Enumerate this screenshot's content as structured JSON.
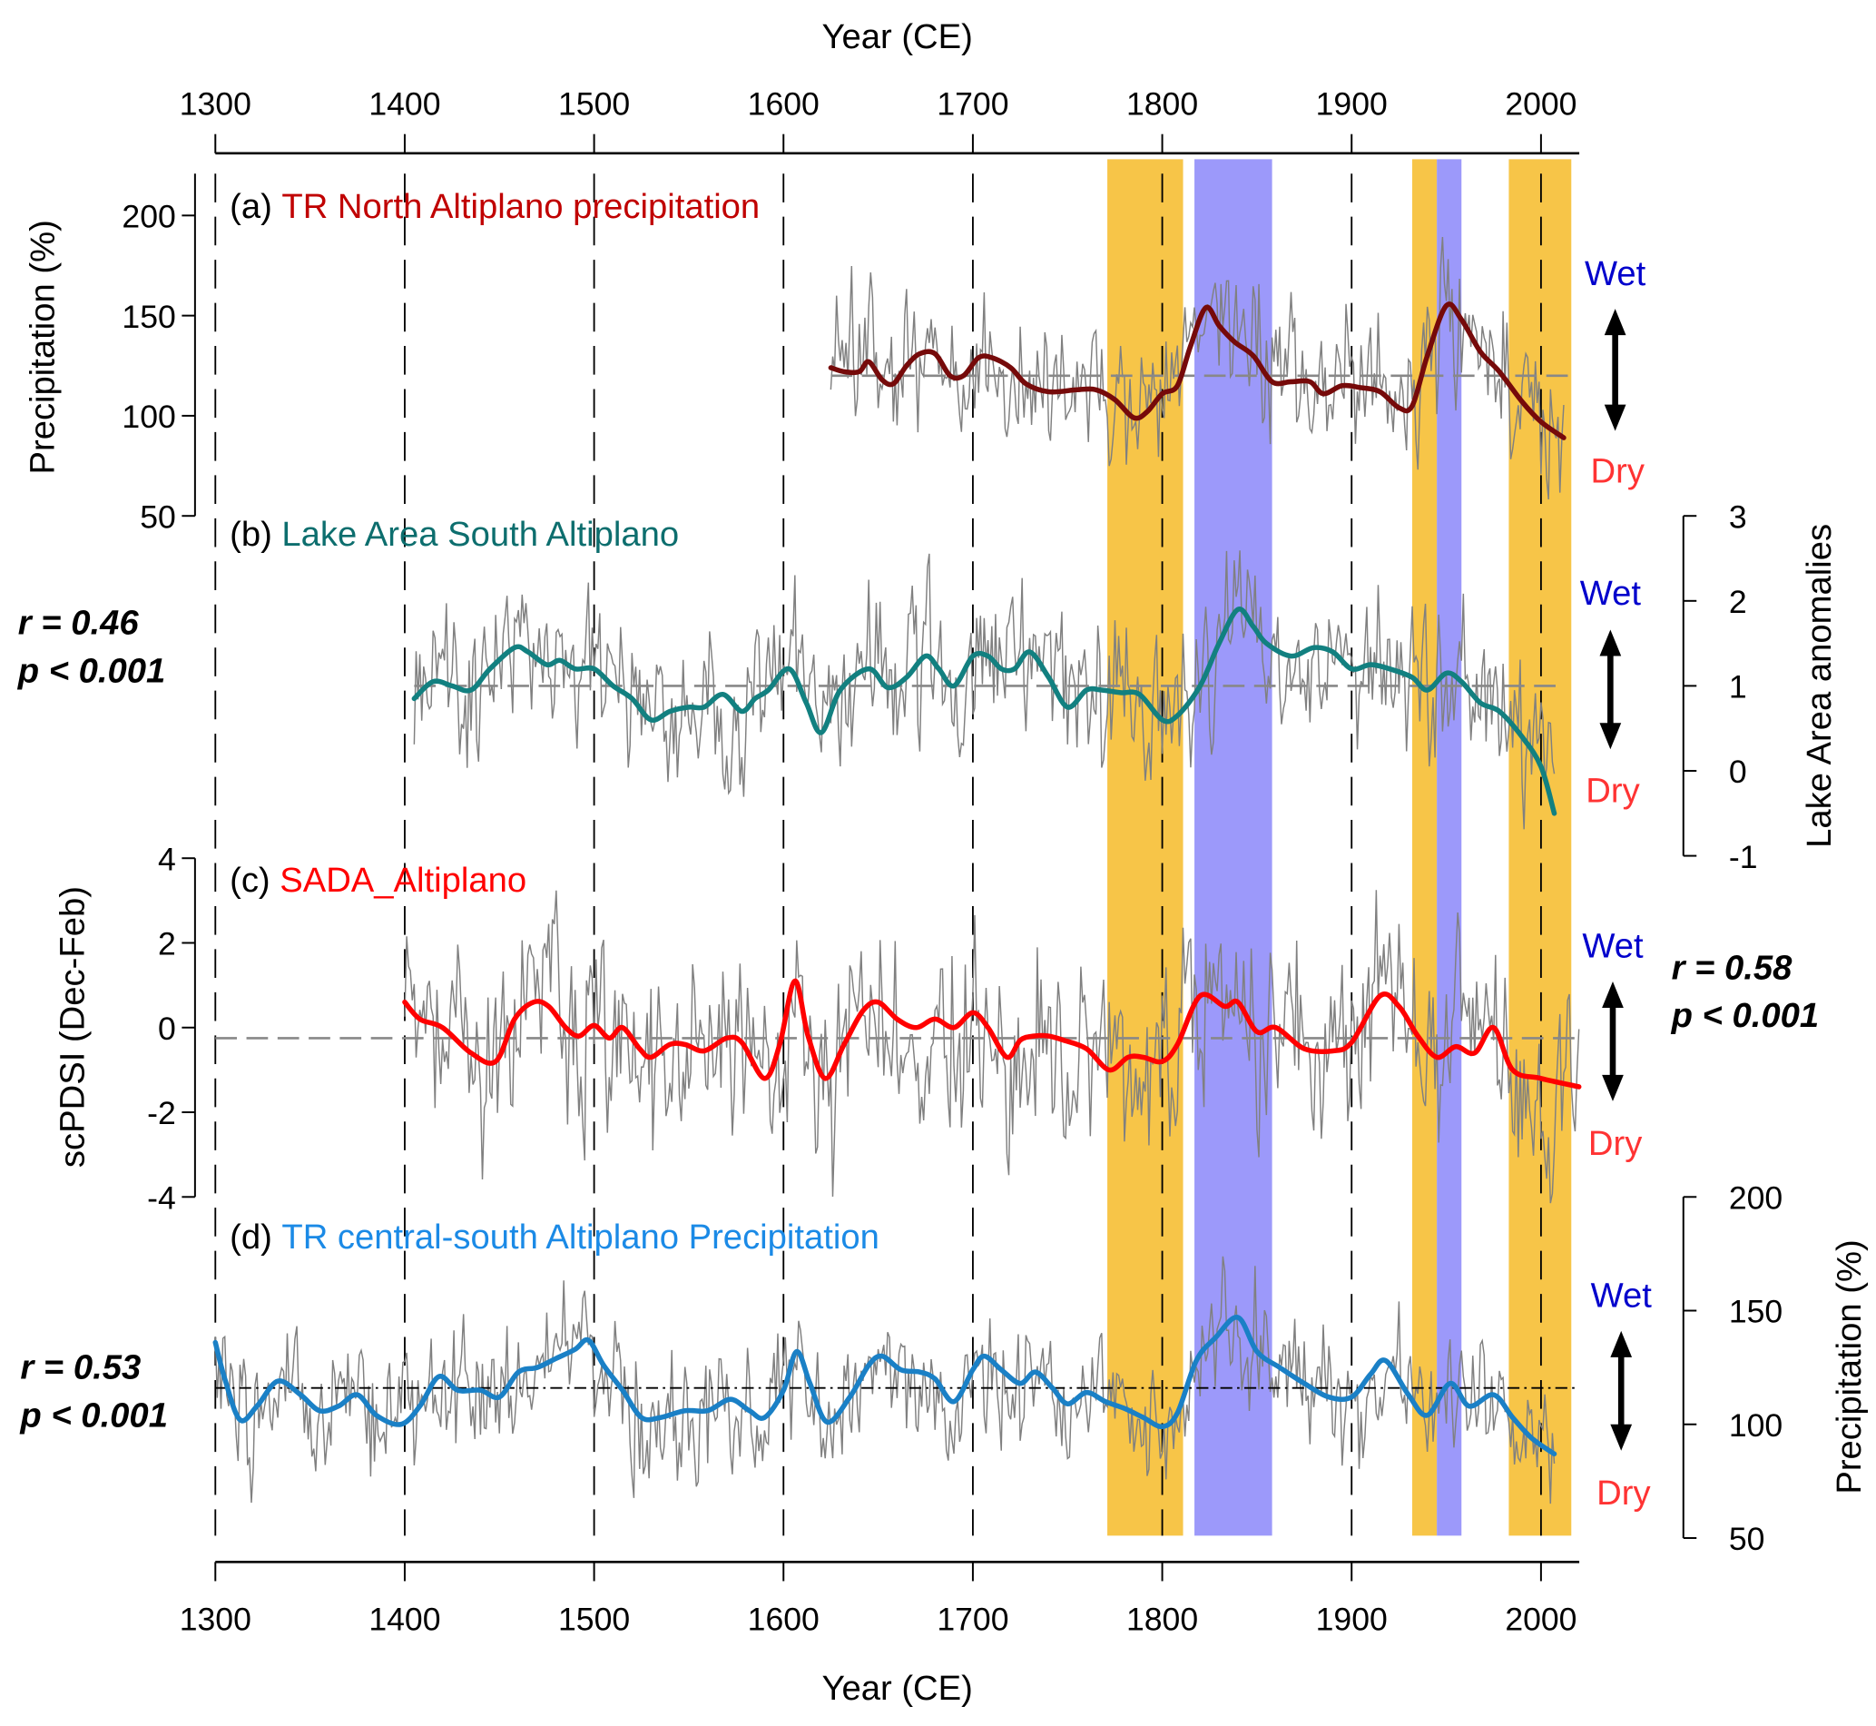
{
  "chart_data": {
    "type": "line",
    "x_axis": {
      "label": "Year (CE)",
      "range": [
        1300,
        2020
      ],
      "ticks": [
        1300,
        1400,
        1500,
        1600,
        1700,
        1800,
        1900,
        2000
      ]
    },
    "shaded_periods": [
      {
        "type": "dry",
        "color": "#f7c548",
        "range": [
          1771,
          1811
        ]
      },
      {
        "type": "wet",
        "color": "#9c99fa",
        "range": [
          1817,
          1858
        ]
      },
      {
        "type": "dry",
        "color": "#f7c548",
        "range": [
          1932,
          1945
        ]
      },
      {
        "type": "wet",
        "color": "#9c99fa",
        "range": [
          1945,
          1958
        ]
      },
      {
        "type": "dry",
        "color": "#f7c548",
        "range": [
          1983,
          2016
        ]
      }
    ],
    "panels": [
      {
        "id": "a",
        "tag": "(a)",
        "title": "TR North Altiplano precipitation",
        "title_color": "#c00000",
        "line_color": "#760a0a",
        "axis_side": "left",
        "ylabel": "Precipitation (%)",
        "ylim": [
          50,
          220
        ],
        "yticks": [
          50,
          100,
          150,
          200
        ],
        "reference": 120,
        "ref_range": [
          1625,
          2015
        ],
        "ref_color": "#888888",
        "noise_amp": 38,
        "noise_seed": 11,
        "smooth": [
          [
            1625,
            124
          ],
          [
            1632,
            122
          ],
          [
            1640,
            122
          ],
          [
            1645,
            127
          ],
          [
            1652,
            118
          ],
          [
            1658,
            116
          ],
          [
            1665,
            125
          ],
          [
            1672,
            131
          ],
          [
            1680,
            131
          ],
          [
            1688,
            120
          ],
          [
            1695,
            120
          ],
          [
            1703,
            129
          ],
          [
            1710,
            129
          ],
          [
            1720,
            124
          ],
          [
            1728,
            116
          ],
          [
            1740,
            112
          ],
          [
            1755,
            113
          ],
          [
            1765,
            113
          ],
          [
            1775,
            108
          ],
          [
            1785,
            99
          ],
          [
            1792,
            102
          ],
          [
            1800,
            111
          ],
          [
            1808,
            115
          ],
          [
            1815,
            135
          ],
          [
            1823,
            154
          ],
          [
            1830,
            145
          ],
          [
            1838,
            137
          ],
          [
            1848,
            130
          ],
          [
            1858,
            117
          ],
          [
            1868,
            117
          ],
          [
            1878,
            117
          ],
          [
            1885,
            111
          ],
          [
            1895,
            115
          ],
          [
            1905,
            114
          ],
          [
            1915,
            112
          ],
          [
            1925,
            104
          ],
          [
            1932,
            105
          ],
          [
            1940,
            130
          ],
          [
            1950,
            155
          ],
          [
            1958,
            148
          ],
          [
            1968,
            132
          ],
          [
            1978,
            122
          ],
          [
            1990,
            107
          ],
          [
            2000,
            97
          ],
          [
            2012,
            89
          ]
        ],
        "wet": "Wet",
        "dry": "Dry",
        "r": null,
        "p": null
      },
      {
        "id": "b",
        "tag": "(b)",
        "title": "Lake Area South Altiplano",
        "title_color": "#0d6e6e",
        "line_color": "#128080",
        "axis_side": "right",
        "ylabel": "Lake Area anomalies",
        "ylim": [
          -1,
          3
        ],
        "yticks": [
          -1,
          0,
          1,
          2,
          3
        ],
        "reference": 1.0,
        "ref_range": [
          1405,
          2008
        ],
        "ref_color": "#888888",
        "noise_amp": 0.95,
        "noise_seed": 23,
        "smooth": [
          [
            1405,
            0.85
          ],
          [
            1415,
            1.05
          ],
          [
            1425,
            1.0
          ],
          [
            1435,
            0.95
          ],
          [
            1445,
            1.2
          ],
          [
            1458,
            1.45
          ],
          [
            1465,
            1.4
          ],
          [
            1475,
            1.25
          ],
          [
            1482,
            1.3
          ],
          [
            1490,
            1.2
          ],
          [
            1500,
            1.2
          ],
          [
            1510,
            1.0
          ],
          [
            1520,
            0.85
          ],
          [
            1530,
            0.6
          ],
          [
            1540,
            0.7
          ],
          [
            1550,
            0.75
          ],
          [
            1558,
            0.75
          ],
          [
            1568,
            0.9
          ],
          [
            1578,
            0.7
          ],
          [
            1585,
            0.85
          ],
          [
            1592,
            0.95
          ],
          [
            1603,
            1.2
          ],
          [
            1612,
            0.8
          ],
          [
            1620,
            0.45
          ],
          [
            1630,
            0.95
          ],
          [
            1645,
            1.2
          ],
          [
            1655,
            0.98
          ],
          [
            1665,
            1.1
          ],
          [
            1675,
            1.35
          ],
          [
            1682,
            1.2
          ],
          [
            1690,
            1.0
          ],
          [
            1700,
            1.35
          ],
          [
            1708,
            1.35
          ],
          [
            1715,
            1.2
          ],
          [
            1722,
            1.2
          ],
          [
            1730,
            1.4
          ],
          [
            1740,
            1.1
          ],
          [
            1750,
            0.75
          ],
          [
            1760,
            0.95
          ],
          [
            1768,
            0.95
          ],
          [
            1778,
            0.92
          ],
          [
            1788,
            0.9
          ],
          [
            1800,
            0.6
          ],
          [
            1808,
            0.65
          ],
          [
            1820,
            1.0
          ],
          [
            1830,
            1.5
          ],
          [
            1840,
            1.9
          ],
          [
            1848,
            1.7
          ],
          [
            1855,
            1.5
          ],
          [
            1868,
            1.35
          ],
          [
            1880,
            1.45
          ],
          [
            1890,
            1.4
          ],
          [
            1900,
            1.2
          ],
          [
            1910,
            1.25
          ],
          [
            1920,
            1.2
          ],
          [
            1932,
            1.1
          ],
          [
            1940,
            0.95
          ],
          [
            1950,
            1.15
          ],
          [
            1958,
            1.05
          ],
          [
            1968,
            0.8
          ],
          [
            1978,
            0.7
          ],
          [
            1990,
            0.4
          ],
          [
            2000,
            0.05
          ],
          [
            2007,
            -0.5
          ]
        ],
        "wet": "Wet",
        "dry": "Dry",
        "r": "r = 0.46",
        "p": "p < 0.001"
      },
      {
        "id": "c",
        "tag": "(c)",
        "title": "SADA_Altiplano",
        "title_color": "#ff0000",
        "line_color": "#ff0000",
        "axis_side": "left",
        "ylabel": "scPDSI (Dec-Feb)",
        "ylim": [
          -4,
          4
        ],
        "yticks": [
          -4,
          -2,
          0,
          2,
          4
        ],
        "reference": -0.25,
        "ref_range": [
          1300,
          2020
        ],
        "ref_color": "#888888",
        "noise_amp": 2.4,
        "noise_seed": 37,
        "smooth": [
          [
            1400,
            0.6
          ],
          [
            1408,
            0.2
          ],
          [
            1420,
            0.0
          ],
          [
            1435,
            -0.6
          ],
          [
            1448,
            -0.8
          ],
          [
            1458,
            0.2
          ],
          [
            1468,
            0.6
          ],
          [
            1476,
            0.5
          ],
          [
            1485,
            0.0
          ],
          [
            1492,
            -0.2
          ],
          [
            1500,
            0.05
          ],
          [
            1508,
            -0.25
          ],
          [
            1515,
            0.0
          ],
          [
            1524,
            -0.5
          ],
          [
            1530,
            -0.7
          ],
          [
            1540,
            -0.4
          ],
          [
            1548,
            -0.4
          ],
          [
            1558,
            -0.55
          ],
          [
            1570,
            -0.25
          ],
          [
            1578,
            -0.35
          ],
          [
            1590,
            -1.2
          ],
          [
            1598,
            -0.4
          ],
          [
            1606,
            1.1
          ],
          [
            1613,
            -0.2
          ],
          [
            1622,
            -1.2
          ],
          [
            1632,
            -0.4
          ],
          [
            1642,
            0.4
          ],
          [
            1650,
            0.6
          ],
          [
            1660,
            0.2
          ],
          [
            1670,
            0.0
          ],
          [
            1680,
            0.2
          ],
          [
            1690,
            0.0
          ],
          [
            1700,
            0.35
          ],
          [
            1708,
            0.0
          ],
          [
            1718,
            -0.7
          ],
          [
            1725,
            -0.3
          ],
          [
            1732,
            -0.2
          ],
          [
            1740,
            -0.2
          ],
          [
            1748,
            -0.3
          ],
          [
            1760,
            -0.5
          ],
          [
            1772,
            -1.0
          ],
          [
            1782,
            -0.7
          ],
          [
            1790,
            -0.7
          ],
          [
            1800,
            -0.8
          ],
          [
            1808,
            -0.4
          ],
          [
            1820,
            0.75
          ],
          [
            1833,
            0.5
          ],
          [
            1840,
            0.6
          ],
          [
            1850,
            -0.1
          ],
          [
            1860,
            0.0
          ],
          [
            1875,
            -0.5
          ],
          [
            1890,
            -0.55
          ],
          [
            1900,
            -0.35
          ],
          [
            1915,
            0.75
          ],
          [
            1925,
            0.5
          ],
          [
            1935,
            -0.2
          ],
          [
            1945,
            -0.7
          ],
          [
            1955,
            -0.45
          ],
          [
            1965,
            -0.6
          ],
          [
            1975,
            0.0
          ],
          [
            1985,
            -1.0
          ],
          [
            2000,
            -1.2
          ],
          [
            2020,
            -1.4
          ]
        ],
        "wet": "Wet",
        "dry": "Dry",
        "r": "r = 0.58",
        "p": "p < 0.001"
      },
      {
        "id": "d",
        "tag": "(d)",
        "title": "TR central-south Altiplano Precipitation",
        "title_color": "#1b8ae6",
        "line_color": "#1a80c6",
        "axis_side": "right",
        "ylabel": "Precipitation (%)",
        "ylim": [
          50,
          200
        ],
        "yticks": [
          50,
          100,
          150,
          200
        ],
        "reference": 116,
        "ref_range": [
          1300,
          2020
        ],
        "ref_color": "#000000",
        "noise_amp": 30,
        "noise_seed": 53,
        "smooth": [
          [
            1300,
            136
          ],
          [
            1305,
            120
          ],
          [
            1313,
            102
          ],
          [
            1322,
            108
          ],
          [
            1333,
            119
          ],
          [
            1345,
            113
          ],
          [
            1355,
            106
          ],
          [
            1365,
            108
          ],
          [
            1375,
            113
          ],
          [
            1385,
            104
          ],
          [
            1398,
            100
          ],
          [
            1408,
            108
          ],
          [
            1418,
            121
          ],
          [
            1428,
            115
          ],
          [
            1440,
            115
          ],
          [
            1450,
            112
          ],
          [
            1460,
            123
          ],
          [
            1470,
            125
          ],
          [
            1480,
            129
          ],
          [
            1490,
            133
          ],
          [
            1497,
            137
          ],
          [
            1505,
            126
          ],
          [
            1515,
            115
          ],
          [
            1525,
            103
          ],
          [
            1535,
            103
          ],
          [
            1548,
            106
          ],
          [
            1560,
            106
          ],
          [
            1572,
            111
          ],
          [
            1582,
            106
          ],
          [
            1590,
            103
          ],
          [
            1600,
            115
          ],
          [
            1607,
            132
          ],
          [
            1614,
            118
          ],
          [
            1623,
            101
          ],
          [
            1635,
            112
          ],
          [
            1645,
            126
          ],
          [
            1652,
            130
          ],
          [
            1662,
            124
          ],
          [
            1672,
            123
          ],
          [
            1680,
            120
          ],
          [
            1690,
            110
          ],
          [
            1700,
            124
          ],
          [
            1706,
            130
          ],
          [
            1715,
            124
          ],
          [
            1725,
            118
          ],
          [
            1733,
            123
          ],
          [
            1742,
            116
          ],
          [
            1750,
            109
          ],
          [
            1760,
            114
          ],
          [
            1770,
            110
          ],
          [
            1780,
            107
          ],
          [
            1790,
            103
          ],
          [
            1800,
            99
          ],
          [
            1808,
            105
          ],
          [
            1818,
            128
          ],
          [
            1828,
            138
          ],
          [
            1840,
            147
          ],
          [
            1850,
            132
          ],
          [
            1862,
            125
          ],
          [
            1875,
            118
          ],
          [
            1888,
            112
          ],
          [
            1900,
            112
          ],
          [
            1910,
            122
          ],
          [
            1918,
            128
          ],
          [
            1930,
            113
          ],
          [
            1940,
            104
          ],
          [
            1952,
            118
          ],
          [
            1962,
            108
          ],
          [
            1975,
            113
          ],
          [
            1985,
            103
          ],
          [
            1995,
            94
          ],
          [
            2007,
            87
          ]
        ],
        "wet": "Wet",
        "dry": "Dry",
        "r": "r = 0.53",
        "p": "p < 0.001"
      }
    ],
    "colors": {
      "wet": "#0000cc",
      "dry": "#ff3333",
      "noise": "#808080"
    }
  }
}
